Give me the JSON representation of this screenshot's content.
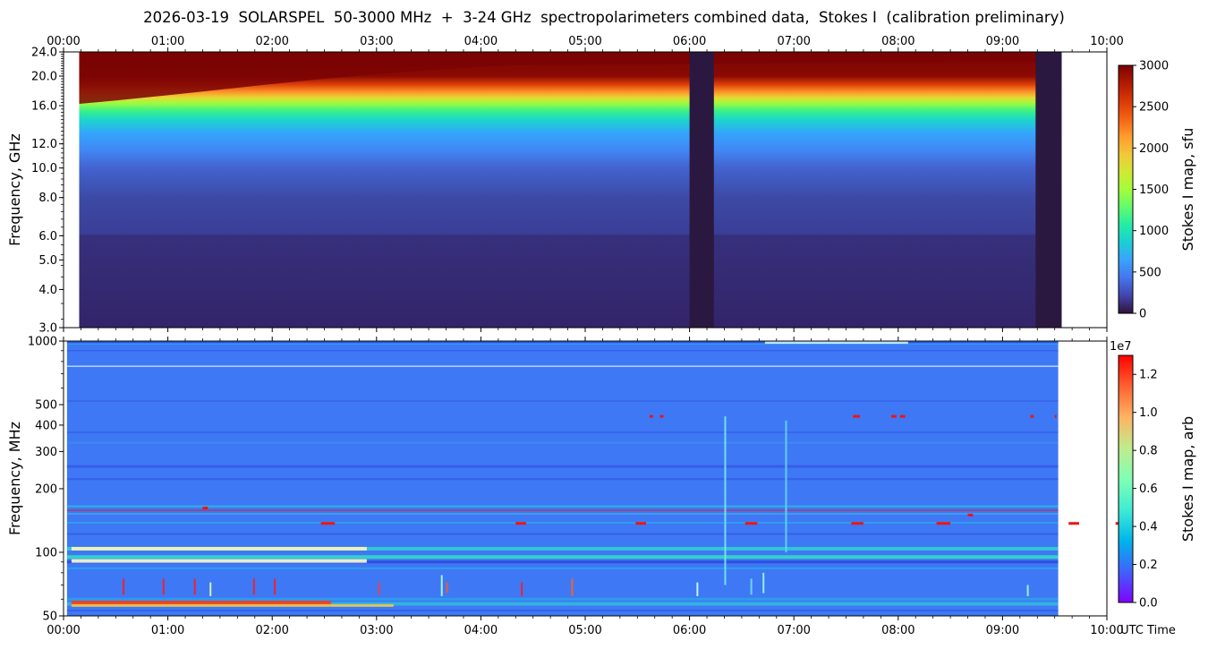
{
  "title": "2026-03-19  SOLARSPEL  50-3000 MHz  +  3-24 GHz  spectropolarimeters combined data,  Stokes I  (calibration preliminary)",
  "colors": {
    "colormap": [
      "#30123b",
      "#4145ab",
      "#4675ed",
      "#39a2fc",
      "#1bcfd4",
      "#24eca6",
      "#61fc6c",
      "#a4fc3b",
      "#d1e834",
      "#f3c63a",
      "#fe9b2d",
      "#f36315",
      "#d93806",
      "#b11901",
      "#7a0403"
    ],
    "rainbow": [
      "#8000ff",
      "#4062fa",
      "#00b5eb",
      "#40ecd4",
      "#80ffb4",
      "#c0eb8d",
      "#ffb462",
      "#ff6232",
      "#ff0000"
    ],
    "data_gap": "#2b1840"
  },
  "chart_data": [
    {
      "type": "heatmap",
      "panel": "microwave",
      "ylabel": "Frequency, GHz",
      "yscale": "log",
      "ylim": [
        3.0,
        24.0
      ],
      "yticks": [
        "3.0",
        "4.0",
        "5.0",
        "6.0",
        "8.0",
        "10.0",
        "12.0",
        "16.0",
        "20.0",
        "24.0"
      ],
      "xlim": [
        "00:00",
        "10:00"
      ],
      "xticks": [
        "00:00",
        "01:00",
        "02:00",
        "03:00",
        "04:00",
        "05:00",
        "06:00",
        "07:00",
        "08:00",
        "09:00",
        "10:00"
      ],
      "data_start": "00:09",
      "data_end": "09:34",
      "gaps": [
        [
          "06:00",
          "06:14"
        ],
        [
          "09:19",
          "09:34"
        ]
      ],
      "colorbar": {
        "label": "Stokes I map, sfu",
        "min": 0,
        "max": 3000,
        "ticks": [
          "0",
          "500",
          "1000",
          "1500",
          "2000",
          "2500",
          "3000"
        ]
      }
    },
    {
      "type": "heatmap",
      "panel": "decimetric",
      "ylabel": "Frequency, MHz",
      "yscale": "log",
      "ylim": [
        50,
        1000
      ],
      "yticks": [
        "50",
        "100",
        "200",
        "300",
        "400",
        "500",
        "1000"
      ],
      "xlim": [
        "00:00",
        "10:00"
      ],
      "xticks": [
        "00:00",
        "01:00",
        "02:00",
        "03:00",
        "04:00",
        "05:00",
        "06:00",
        "07:00",
        "08:00",
        "09:00",
        "10:00"
      ],
      "xlabel": "UTC Time",
      "data_start": "00:02",
      "data_end": "09:32",
      "colorbar": {
        "label": "Stokes I map, arb",
        "min": 0.0,
        "max": 1.3,
        "multiplier": "1e7",
        "ticks": [
          "0.0",
          "0.2",
          "0.4",
          "0.6",
          "0.8",
          "1.0",
          "1.2"
        ]
      }
    }
  ]
}
